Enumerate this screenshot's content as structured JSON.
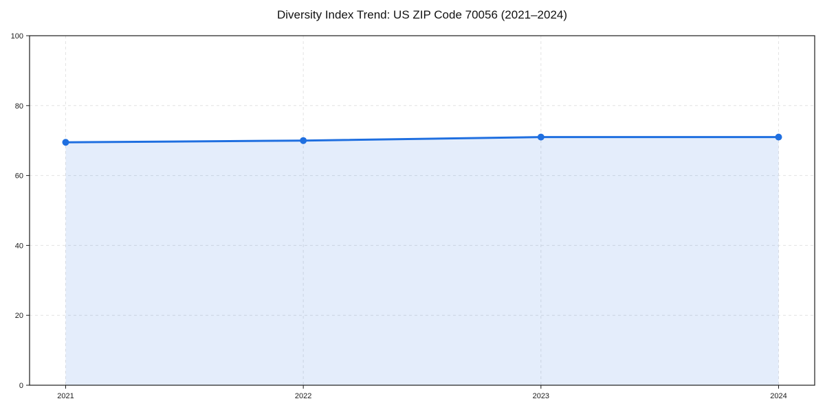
{
  "chart_data": {
    "type": "line",
    "title": "Diversity Index Trend: US ZIP Code 70056 (2021–2024)",
    "categories": [
      "2021",
      "2022",
      "2023",
      "2024"
    ],
    "series": [
      {
        "name": "Diversity Index",
        "values": [
          69.5,
          70,
          71,
          71
        ]
      }
    ],
    "xlabel": "",
    "ylabel": "",
    "ylim": [
      0,
      100
    ],
    "yticks": [
      0,
      20,
      40,
      60,
      80,
      100
    ],
    "grid": "dashed-both-axes",
    "legend": "none",
    "area_fill": true,
    "line_width": 3,
    "marker_radius": 5,
    "colors": {
      "line": "#1f6fe0",
      "fill": "rgba(31,111,224,0.12)",
      "grid": "#e2e2e2",
      "axis": "#1a1a1a",
      "text": "#1a1a1a",
      "title": "#111111",
      "background": "#ffffff"
    }
  }
}
